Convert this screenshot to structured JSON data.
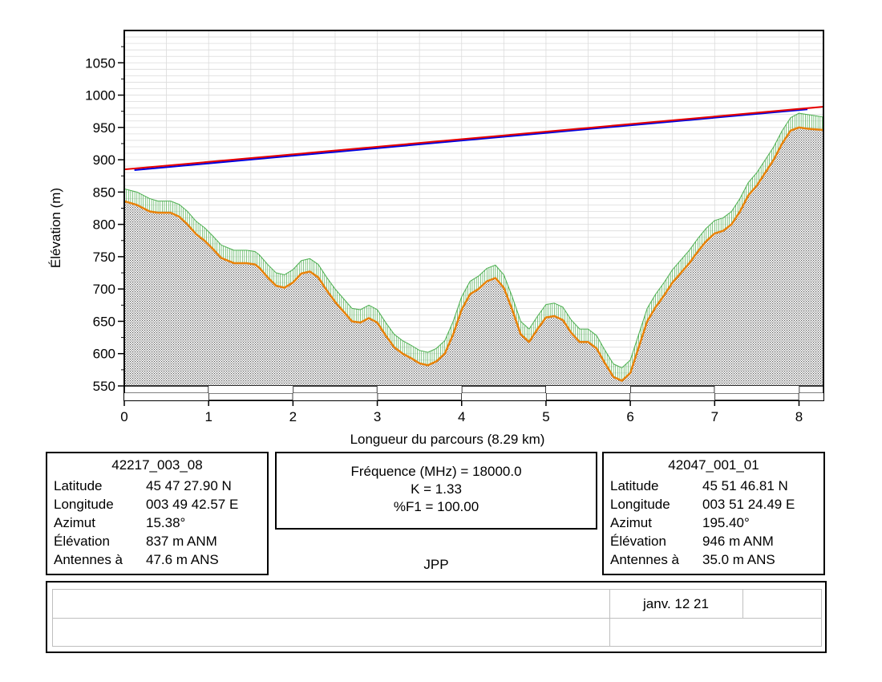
{
  "chart_data": {
    "type": "line",
    "xlabel": "Longueur du parcours (8.29 km)",
    "ylabel": "Élévation (m)",
    "xlim": [
      0,
      8.29
    ],
    "ylim": [
      550,
      1100
    ],
    "x_ticks": [
      0,
      1,
      2,
      3,
      4,
      5,
      6,
      7,
      8
    ],
    "y_ticks": [
      550,
      600,
      650,
      700,
      750,
      800,
      850,
      900,
      950,
      1000,
      1050
    ],
    "grid": true,
    "colors": {
      "terrain": "#e8820a",
      "clearance": "#4caf50",
      "los": "#e60000",
      "fresnel": "#0000e0"
    },
    "series": [
      {
        "x": [
          0,
          0.15,
          0.3,
          0.4,
          0.55,
          0.65,
          0.75,
          0.85,
          0.95,
          1.05,
          1.15,
          1.3,
          1.45,
          1.55,
          1.6,
          1.7,
          1.8,
          1.9,
          2.0,
          2.1,
          2.2,
          2.3,
          2.4,
          2.5,
          2.6,
          2.7,
          2.8,
          2.9,
          3.0,
          3.1,
          3.2,
          3.3,
          3.4,
          3.5,
          3.6,
          3.7,
          3.8,
          3.9,
          4.0,
          4.1,
          4.2,
          4.3,
          4.4,
          4.5,
          4.6,
          4.7,
          4.8,
          4.9,
          5.0,
          5.1,
          5.2,
          5.3,
          5.4,
          5.5,
          5.6,
          5.7,
          5.8,
          5.9,
          6.0,
          6.1,
          6.2,
          6.3,
          6.4,
          6.5,
          6.6,
          6.7,
          6.8,
          6.9,
          7.0,
          7.1,
          7.2,
          7.3,
          7.4,
          7.5,
          7.6,
          7.7,
          7.8,
          7.9,
          8.0,
          8.1,
          8.2,
          8.29
        ],
        "y": [
          836,
          830,
          820,
          818,
          818,
          812,
          800,
          785,
          775,
          762,
          748,
          740,
          740,
          738,
          733,
          718,
          705,
          702,
          710,
          724,
          727,
          718,
          698,
          680,
          665,
          650,
          648,
          655,
          648,
          628,
          610,
          600,
          593,
          585,
          582,
          588,
          600,
          630,
          668,
          692,
          700,
          712,
          717,
          702,
          668,
          630,
          618,
          638,
          656,
          658,
          652,
          632,
          618,
          618,
          608,
          585,
          564,
          558,
          570,
          610,
          650,
          672,
          690,
          710,
          725,
          740,
          758,
          774,
          786,
          790,
          800,
          820,
          845,
          860,
          880,
          900,
          925,
          945,
          950,
          948,
          947,
          946
        ]
      },
      {
        "x": [
          0,
          0.15,
          0.3,
          0.4,
          0.55,
          0.65,
          0.75,
          0.85,
          0.95,
          1.05,
          1.15,
          1.3,
          1.45,
          1.55,
          1.6,
          1.7,
          1.8,
          1.9,
          2.0,
          2.1,
          2.2,
          2.3,
          2.4,
          2.5,
          2.6,
          2.7,
          2.8,
          2.9,
          3.0,
          3.1,
          3.2,
          3.3,
          3.4,
          3.5,
          3.6,
          3.7,
          3.8,
          3.9,
          4.0,
          4.1,
          4.2,
          4.3,
          4.4,
          4.5,
          4.6,
          4.7,
          4.8,
          4.9,
          5.0,
          5.1,
          5.2,
          5.3,
          5.4,
          5.5,
          5.6,
          5.7,
          5.8,
          5.9,
          6.0,
          6.1,
          6.2,
          6.3,
          6.4,
          6.5,
          6.6,
          6.7,
          6.8,
          6.9,
          7.0,
          7.1,
          7.2,
          7.3,
          7.4,
          7.5,
          7.6,
          7.7,
          7.8,
          7.9,
          8.0,
          8.1,
          8.2,
          8.29
        ],
        "y": [
          855,
          850,
          840,
          836,
          836,
          831,
          820,
          805,
          795,
          782,
          768,
          760,
          760,
          758,
          753,
          738,
          725,
          722,
          730,
          744,
          747,
          738,
          718,
          700,
          685,
          670,
          668,
          675,
          668,
          648,
          630,
          620,
          613,
          605,
          602,
          608,
          620,
          650,
          688,
          712,
          720,
          732,
          737,
          722,
          688,
          650,
          638,
          658,
          676,
          678,
          672,
          652,
          638,
          638,
          628,
          605,
          584,
          578,
          590,
          630,
          670,
          692,
          710,
          730,
          745,
          760,
          778,
          794,
          806,
          810,
          820,
          840,
          865,
          880,
          900,
          920,
          945,
          965,
          972,
          970,
          968,
          966
        ]
      },
      {
        "x": [
          0,
          8.29
        ],
        "y": [
          885,
          982
        ]
      },
      {
        "x": [
          0.12,
          8.1
        ],
        "y": [
          884,
          978
        ]
      }
    ]
  },
  "left_station": {
    "title": "42217_003_08",
    "rows": [
      {
        "label": "Latitude",
        "value": "45 47 27.90 N"
      },
      {
        "label": "Longitude",
        "value": "003 49 42.57 E"
      },
      {
        "label": "Azimut",
        "value": "15.38°"
      },
      {
        "label": "Élévation",
        "value": "837 m ANM"
      },
      {
        "label": "Antennes à",
        "value": "47.6 m ANS"
      }
    ]
  },
  "right_station": {
    "title": "42047_001_01",
    "rows": [
      {
        "label": "Latitude",
        "value": "45 51 46.81 N"
      },
      {
        "label": "Longitude",
        "value": "003 51 24.49 E"
      },
      {
        "label": "Azimut",
        "value": "195.40°"
      },
      {
        "label": "Élévation",
        "value": "946 m ANM"
      },
      {
        "label": "Antennes à",
        "value": "35.0 m ANS"
      }
    ]
  },
  "center": {
    "frequency": "Fréquence (MHz) = 18000.0",
    "k": "K = 1.33",
    "f1": "%F1 = 100.00"
  },
  "operator": "JPP",
  "footer": {
    "date": "janv. 12 21"
  }
}
